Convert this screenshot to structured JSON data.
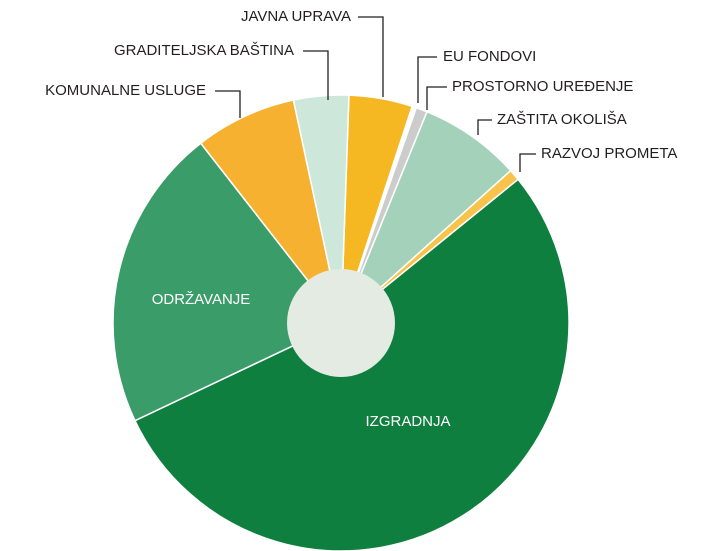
{
  "chart_data": {
    "type": "pie",
    "categories": [
      "JAVNA UPRAVA",
      "EU FONDOVI",
      "PROSTORNO UREĐENJE",
      "ZAŠTITA OKOLIŠA",
      "RAZVOJ PROMETA",
      "IZGRADNJA",
      "ODRŽAVANJE",
      "KOMUNALNE USLUGE",
      "GRADITELJSKA BAŠTINA"
    ],
    "values": [
      4.5,
      0.3,
      0.8,
      7.2,
      0.8,
      53.8,
      21.5,
      7.2,
      3.9
    ],
    "colors": [
      "#f5b722",
      "#ffffff",
      "#cccccc",
      "#a3d1b9",
      "#f8c34a",
      "#0f7f3f",
      "#3a9c68",
      "#f7b131",
      "#cde8da"
    ]
  }
}
